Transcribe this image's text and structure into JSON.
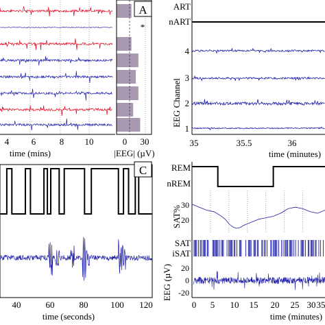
{
  "figure": {
    "panel_a": {
      "letter": "A",
      "marker": "*",
      "xlabel_left": "time (mins)",
      "xlabel_right": "|EEG| (µV)",
      "time_ticks": [
        "4",
        "6",
        "8",
        "10"
      ],
      "amp_ticks": [
        "0",
        "30"
      ]
    },
    "panel_b": {
      "ylabel": "EEG Channel",
      "xlabel": "time (minutes)",
      "ytick_labels": [
        "ART",
        "nART",
        "4",
        "3",
        "2",
        "1"
      ],
      "xticks": [
        "35",
        "35.5",
        "36"
      ]
    },
    "panel_c": {
      "letter": "C",
      "xlabel": "time (seconds)",
      "xticks": [
        "40",
        "60",
        "80",
        "100",
        "120"
      ]
    },
    "panel_d": {
      "state_labels": [
        "REM",
        "nREM"
      ],
      "sat_labels": [
        "SAT",
        "iSAT"
      ],
      "sat_pct_label": "SAT%",
      "sat_pct_ticks": [
        "30",
        "20"
      ],
      "eeg_label": "EEG (µV)",
      "eeg_ticks": [
        "20",
        "0",
        "-20"
      ],
      "xlabel": "time (minutes)",
      "xticks": [
        "0",
        "5",
        "10",
        "15",
        "20",
        "25",
        "30",
        "35"
      ]
    }
  },
  "colors": {
    "red": "#e0001a",
    "blue": "#1a1aa8",
    "bar": "#a898b0",
    "black": "#000000"
  },
  "chart_data": [
    {
      "type": "bar",
      "panel": "A (right, per-channel mean |EEG|)",
      "orientation": "horizontal",
      "xlabel": "|EEG| (µV)",
      "xlim": [
        0,
        40
      ],
      "values": [
        17,
        0,
        17,
        25,
        22,
        25,
        19,
        27
      ],
      "channel_trace_colors": [
        "red",
        "blue",
        "red",
        "blue",
        "blue",
        "blue",
        "red",
        "blue"
      ],
      "flagged_channel_index": 1
    },
    {
      "type": "line",
      "panel": "B",
      "xlabel": "time (minutes)",
      "ylabel": "EEG Channel",
      "xlim": [
        35,
        36.3
      ],
      "categories": [
        "1",
        "2",
        "3",
        "4"
      ],
      "artefact_state": {
        "levels": [
          "ART",
          "nART"
        ],
        "value": "nART"
      }
    },
    {
      "type": "line",
      "panel": "C",
      "xlabel": "time (seconds)",
      "xlim": [
        30,
        120
      ],
      "state_level_changes_s": [
        30,
        34,
        34,
        37,
        37,
        45,
        45,
        48,
        48,
        56,
        56,
        58,
        58,
        60,
        60,
        65,
        65,
        68,
        68,
        80,
        80,
        84,
        84,
        100,
        100,
        103,
        103,
        106,
        106,
        110,
        110,
        112,
        112,
        120
      ]
    },
    {
      "type": "line",
      "panel": "D (sleep state)",
      "xlabel": "time (minutes)",
      "xlim": [
        0,
        36
      ],
      "series": [
        {
          "name": "REM",
          "x": [
            0,
            7
          ],
          "y": [
            1,
            1
          ]
        },
        {
          "name": "nREM",
          "x": [
            7,
            22
          ],
          "y": [
            0,
            0
          ]
        },
        {
          "name": "REM",
          "x": [
            22,
            36
          ],
          "y": [
            1,
            1
          ]
        }
      ]
    },
    {
      "type": "line",
      "panel": "D (SAT%)",
      "ylabel": "SAT%",
      "xlim": [
        0,
        36
      ],
      "ylim": [
        12,
        36
      ],
      "x": [
        0,
        1,
        2,
        4,
        6,
        8,
        9,
        10,
        11,
        12,
        13,
        14,
        16,
        18,
        20,
        22,
        24,
        26,
        28,
        30,
        32,
        34,
        36
      ],
      "y": [
        31,
        30,
        29,
        27,
        26,
        23,
        21,
        18,
        16,
        15,
        15.5,
        17,
        19,
        21,
        22,
        23,
        25,
        28,
        29,
        28,
        26,
        25,
        27
      ]
    }
  ]
}
